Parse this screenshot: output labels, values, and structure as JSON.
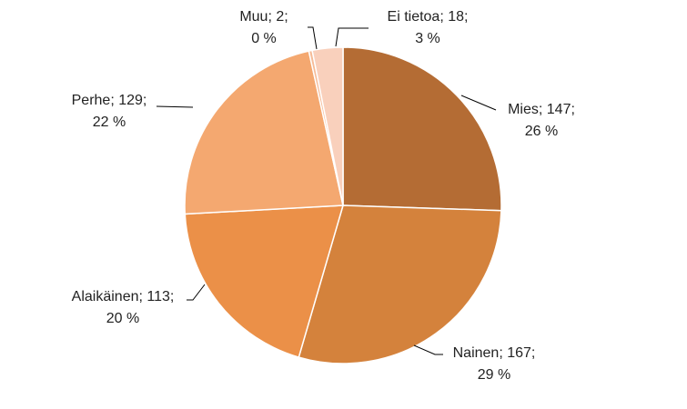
{
  "chart_data": {
    "type": "pie",
    "values": [
      147,
      167,
      113,
      129,
      2,
      18
    ],
    "value_labels": [
      [
        "Mies; 147;",
        "26 %"
      ],
      [
        "Nainen; 167;",
        "29 %"
      ],
      [
        "Alaikäinen; 113;",
        "20 %"
      ],
      [
        "Perhe; 129;",
        "22 %"
      ],
      [
        "Muu; 2;",
        "0 %"
      ],
      [
        "Ei tietoa; 18;",
        "3 %"
      ]
    ],
    "colors": [
      "#b46c34",
      "#d4823c",
      "#eb9048",
      "#f4a870",
      "#f6bc98",
      "#f9d0bc"
    ]
  }
}
